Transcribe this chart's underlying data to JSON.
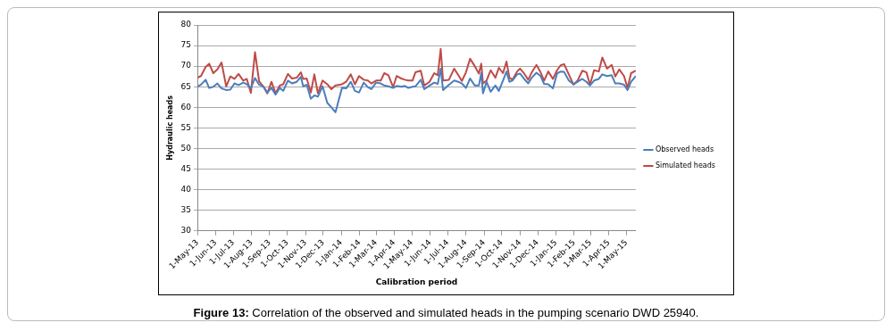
{
  "chart_data": {
    "type": "line",
    "xlabel": "Calibration period",
    "ylabel": "Hydraulic heads",
    "annotations": [
      "Figure 13: Correlation of the observed and simulated heads in the pumping scenario DWD 25940."
    ],
    "x": [
      "2013-05-01",
      "2013-05-07",
      "2013-05-15",
      "2013-05-21",
      "2013-05-28",
      "2013-06-04",
      "2013-06-11",
      "2013-06-19",
      "2013-06-26",
      "2013-07-03",
      "2013-07-10",
      "2013-07-18",
      "2013-07-24",
      "2013-07-31",
      "2013-08-07",
      "2013-08-14",
      "2013-08-21",
      "2013-08-28",
      "2013-09-04",
      "2013-09-11",
      "2013-09-18",
      "2013-09-24",
      "2013-10-02",
      "2013-10-09",
      "2013-10-17",
      "2013-10-24",
      "2013-10-28",
      "2013-11-03",
      "2013-11-10",
      "2013-11-16",
      "2013-11-22",
      "2013-11-30",
      "2013-12-08",
      "2013-12-15",
      "2013-12-22",
      "2014-01-02",
      "2014-01-09",
      "2014-01-17",
      "2014-01-24",
      "2014-01-31",
      "2014-02-08",
      "2014-02-15",
      "2014-02-21",
      "2014-03-01",
      "2014-03-09",
      "2014-03-15",
      "2014-03-22",
      "2014-03-30",
      "2014-04-05",
      "2014-04-13",
      "2014-04-19",
      "2014-04-25",
      "2014-05-02",
      "2014-05-07",
      "2014-05-16",
      "2014-05-22",
      "2014-05-31",
      "2014-06-08",
      "2014-06-14",
      "2014-06-19",
      "2014-06-23",
      "2014-07-03",
      "2014-07-12",
      "2014-07-19",
      "2014-07-25",
      "2014-08-01",
      "2014-08-08",
      "2014-08-16",
      "2014-08-23",
      "2014-08-27",
      "2014-08-30",
      "2014-09-05",
      "2014-09-12",
      "2014-09-20",
      "2014-09-26",
      "2014-10-03",
      "2014-10-09",
      "2014-10-14",
      "2014-10-19",
      "2014-10-27",
      "2014-11-01",
      "2014-11-08",
      "2014-11-15",
      "2014-11-21",
      "2014-11-29",
      "2014-12-06",
      "2014-12-12",
      "2014-12-19",
      "2014-12-27",
      "2015-01-03",
      "2015-01-09",
      "2015-01-15",
      "2015-01-23",
      "2015-01-31",
      "2015-02-07",
      "2015-02-15",
      "2015-02-22",
      "2015-02-28",
      "2015-03-07",
      "2015-03-15",
      "2015-03-21",
      "2015-03-29",
      "2015-04-06",
      "2015-04-12",
      "2015-04-19",
      "2015-04-27",
      "2015-05-03",
      "2015-05-09",
      "2015-05-17"
    ],
    "series": [
      {
        "name": "Observed heads",
        "color": "#4a7ebb",
        "values": [
          65,
          65.5,
          66.7,
          64.7,
          65,
          65.8,
          64.6,
          64.2,
          64.3,
          65.8,
          65.4,
          66,
          65.6,
          64.7,
          67.1,
          65.5,
          65.1,
          63.6,
          64.7,
          63.1,
          64.7,
          64,
          66.5,
          65.8,
          66.2,
          67.4,
          65.1,
          65.5,
          62.1,
          62.9,
          62.6,
          65.1,
          61.1,
          60,
          58.8,
          64.7,
          64.6,
          66.2,
          64,
          63.6,
          66,
          64.9,
          64.4,
          66,
          65.8,
          65.3,
          65.1,
          64.7,
          65.2,
          65,
          65.2,
          64.7,
          65,
          65.1,
          66.7,
          64.4,
          65.3,
          66,
          65.7,
          69.4,
          64.2,
          65.5,
          66.5,
          66.2,
          65.8,
          64.7,
          67,
          65.3,
          65.3,
          68.3,
          63.4,
          66.2,
          63.8,
          65.3,
          64,
          66.5,
          68.7,
          66.2,
          66.5,
          68,
          68.2,
          66.9,
          65.8,
          67.2,
          68.4,
          67.6,
          65.7,
          65.6,
          64.6,
          68.2,
          68.7,
          68.6,
          66.5,
          65.6,
          66.2,
          66.9,
          66.2,
          65.3,
          66.5,
          66.9,
          68,
          67.6,
          67.8,
          65.8,
          65.8,
          65.5,
          64.2,
          66.2,
          67.6
        ]
      },
      {
        "name": "Simulated heads",
        "color": "#be4b48",
        "values": [
          67.2,
          67.6,
          69.8,
          70.6,
          68.3,
          69.2,
          70.9,
          65.1,
          67.5,
          66.9,
          68.1,
          66.5,
          66.9,
          63.5,
          73.4,
          66.3,
          65.1,
          63.4,
          66.2,
          63.4,
          65.3,
          65.6,
          68.1,
          67,
          67.2,
          68.5,
          66.9,
          67,
          63.6,
          68,
          63.4,
          66.5,
          65.6,
          64.4,
          65.3,
          65.6,
          66.2,
          68,
          65.6,
          67.6,
          66.7,
          66.5,
          65.8,
          66.5,
          66.5,
          68.3,
          67.8,
          64.9,
          67.6,
          67,
          66.7,
          66.5,
          66.5,
          68.5,
          68.9,
          65.3,
          66.2,
          68.3,
          67.8,
          74.2,
          66.5,
          66.7,
          69.4,
          67.8,
          66.4,
          68.5,
          71.8,
          70,
          68.2,
          70.6,
          65.8,
          66.5,
          69,
          67.2,
          69.6,
          68.3,
          71.1,
          67.2,
          66.7,
          68.7,
          69.4,
          68.2,
          66.7,
          68.5,
          70.3,
          68.5,
          66.5,
          68.7,
          66.9,
          69,
          70.2,
          70.5,
          68,
          65.5,
          66.5,
          68.9,
          68.5,
          65.5,
          69,
          68.7,
          72.1,
          69.4,
          70.3,
          67.5,
          69.2,
          67.6,
          64.7,
          68.3,
          68.9
        ]
      }
    ],
    "xlim": [
      "2013-05-01",
      "2015-05-17"
    ],
    "xticks": [
      {
        "value": "2013-05-01",
        "label": "1-May-13"
      },
      {
        "value": "2013-06-01",
        "label": "1-Jun-13"
      },
      {
        "value": "2013-07-01",
        "label": "1-Jul-13"
      },
      {
        "value": "2013-08-01",
        "label": "1-Aug-13"
      },
      {
        "value": "2013-09-01",
        "label": "1-Sep-13"
      },
      {
        "value": "2013-10-01",
        "label": "1-Oct-13"
      },
      {
        "value": "2013-11-01",
        "label": "1-Nov-13"
      },
      {
        "value": "2013-12-01",
        "label": "1-Dec-13"
      },
      {
        "value": "2014-01-01",
        "label": "1-Jan-14"
      },
      {
        "value": "2014-02-01",
        "label": "1-Feb-14"
      },
      {
        "value": "2014-03-01",
        "label": "1-Mar-14"
      },
      {
        "value": "2014-04-01",
        "label": "1-Apr-14"
      },
      {
        "value": "2014-05-01",
        "label": "1-May-14"
      },
      {
        "value": "2014-06-01",
        "label": "1-Jun-14"
      },
      {
        "value": "2014-07-01",
        "label": "1-Jul-14"
      },
      {
        "value": "2014-08-01",
        "label": "1-Aug-14"
      },
      {
        "value": "2014-09-01",
        "label": "1-Sep-14"
      },
      {
        "value": "2014-10-01",
        "label": "1-Oct-14"
      },
      {
        "value": "2014-11-01",
        "label": "1-Nov-14"
      },
      {
        "value": "2014-12-01",
        "label": "1-Dec-14"
      },
      {
        "value": "2015-01-01",
        "label": "1-Jan-15"
      },
      {
        "value": "2015-02-01",
        "label": "1-Feb-15"
      },
      {
        "value": "2015-03-01",
        "label": "1-Mar-15"
      },
      {
        "value": "2015-04-01",
        "label": "1-Apr-15"
      },
      {
        "value": "2015-05-01",
        "label": "1-May-15"
      }
    ],
    "ylim": [
      30,
      80
    ],
    "yticks": [
      30,
      35,
      40,
      45,
      50,
      55,
      60,
      65,
      70,
      75,
      80
    ],
    "grid": "y",
    "legend": "right",
    "marker": "none",
    "line_style": "solid"
  }
}
